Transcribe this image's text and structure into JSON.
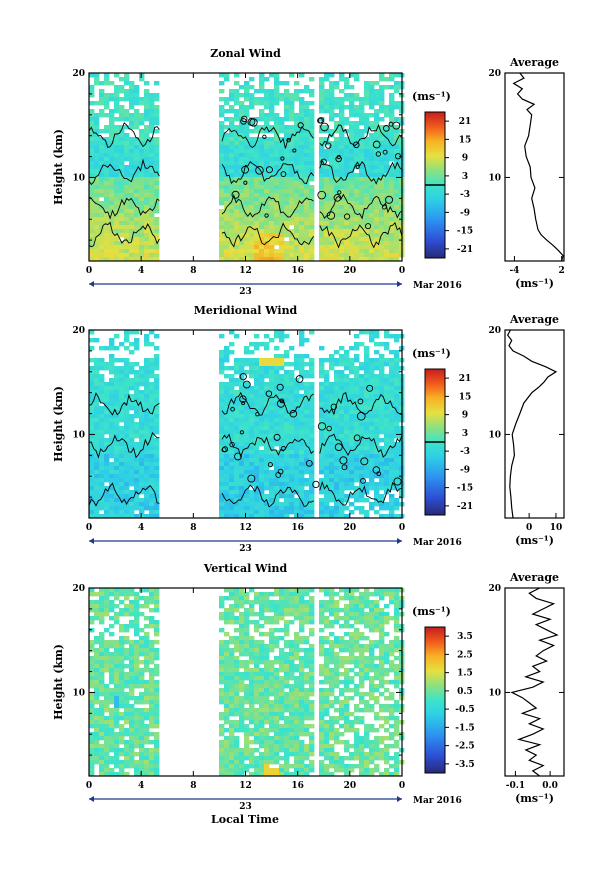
{
  "figure": {
    "xlabel": "Local Time",
    "date_label": "Mar 2016",
    "day_label": "23",
    "average_title": "Average",
    "unit_label": "(ms⁻¹)",
    "ylabel": "Height (km)"
  },
  "chart_data": [
    {
      "type": "heatmap",
      "title": "Zonal Wind",
      "ylabel": "Height (km)",
      "xlabel": "",
      "xlim": [
        0,
        24
      ],
      "ylim": [
        2,
        20
      ],
      "x_ticks": [
        "0",
        "4",
        "8",
        "12",
        "16",
        "20",
        "0"
      ],
      "y_ticks": [
        "20",
        "10"
      ],
      "data_gap_hours": [
        [
          5.5,
          10.0
        ],
        [
          17.4,
          17.6
        ]
      ],
      "colorbar": {
        "unit": "(ms⁻¹)",
        "range": [
          -24,
          24
        ],
        "ticks": [
          "21",
          "15",
          "9",
          "3",
          "-3",
          "-9",
          "-15",
          "-21"
        ],
        "contour_level": 0
      },
      "average_profile": {
        "title": "Average",
        "xlabel": "(ms⁻¹)",
        "x_ticks": [
          "-4",
          "2"
        ],
        "xlim": [
          -5.2,
          2.3
        ],
        "y_ticks": [
          "20",
          "10"
        ],
        "height_km": [
          2.0,
          2.5,
          3.0,
          3.5,
          4.0,
          4.5,
          5.0,
          6.0,
          7.0,
          8.0,
          9.0,
          10.0,
          11.0,
          12.0,
          13.0,
          14.0,
          15.0,
          16.0,
          16.5,
          17.0,
          17.5,
          18.0,
          18.5,
          19.0,
          19.5,
          20.0
        ],
        "wind_ms": [
          2.0,
          2.2,
          1.6,
          0.9,
          0.1,
          -0.6,
          -1.0,
          -1.3,
          -1.5,
          -1.8,
          -1.4,
          -1.9,
          -2.0,
          -2.5,
          -2.7,
          -2.2,
          -2.0,
          -1.8,
          -2.4,
          -1.5,
          -3.0,
          -3.6,
          -3.0,
          -4.1,
          -2.8,
          -3.3
        ]
      }
    },
    {
      "type": "heatmap",
      "title": "Meridional Wind",
      "ylabel": "Height (km)",
      "xlabel": "",
      "xlim": [
        0,
        24
      ],
      "ylim": [
        2,
        20
      ],
      "x_ticks": [
        "0",
        "4",
        "8",
        "12",
        "16",
        "20",
        "0"
      ],
      "y_ticks": [
        "20",
        "10"
      ],
      "data_gap_hours": [
        [
          5.5,
          10.0
        ],
        [
          17.4,
          17.6
        ]
      ],
      "colorbar": {
        "unit": "(ms⁻¹)",
        "range": [
          -24,
          24
        ],
        "ticks": [
          "21",
          "15",
          "9",
          "3",
          "-3",
          "-9",
          "-15",
          "-21"
        ],
        "contour_level": 0
      },
      "average_profile": {
        "title": "Average",
        "xlabel": "(ms⁻¹)",
        "x_ticks": [
          "0",
          "10"
        ],
        "xlim": [
          -9,
          13
        ],
        "y_ticks": [
          "20",
          "10"
        ],
        "height_km": [
          2.0,
          3.0,
          4.0,
          5.0,
          6.0,
          7.0,
          8.0,
          9.0,
          10.0,
          11.0,
          12.0,
          13.0,
          14.0,
          14.5,
          15.0,
          15.5,
          16.0,
          16.5,
          17.0,
          17.5,
          18.0,
          18.5,
          19.0,
          19.5,
          20.0
        ],
        "wind_ms": [
          -6.0,
          -6.5,
          -6.8,
          -7.2,
          -7.0,
          -6.5,
          -5.5,
          -5.8,
          -6.3,
          -5.0,
          -3.5,
          -2.0,
          1.0,
          3.5,
          5.5,
          7.0,
          10.0,
          6.0,
          1.0,
          -2.0,
          -6.0,
          -7.5,
          -6.5,
          -8.0,
          -7.0
        ]
      }
    },
    {
      "type": "heatmap",
      "title": "Vertical Wind",
      "ylabel": "Height (km)",
      "xlabel": "Local Time",
      "xlim": [
        0,
        24
      ],
      "ylim": [
        2,
        20
      ],
      "x_ticks": [
        "0",
        "4",
        "8",
        "12",
        "16",
        "20",
        "0"
      ],
      "y_ticks": [
        "20",
        "10"
      ],
      "data_gap_hours": [
        [
          5.5,
          10.0
        ],
        [
          17.4,
          17.6
        ]
      ],
      "colorbar": {
        "unit": "(ms⁻¹)",
        "range": [
          -4,
          4
        ],
        "ticks": [
          "3.5",
          "2.5",
          "1.5",
          "0.5",
          "-0.5",
          "-1.5",
          "-2.5",
          "-3.5"
        ]
      },
      "average_profile": {
        "title": "Average",
        "xlabel": "(ms⁻¹)",
        "x_ticks": [
          "-0.1",
          "0.0"
        ],
        "xlim": [
          -0.13,
          0.04
        ],
        "y_ticks": [
          "20",
          "10"
        ],
        "height_km": [
          2.0,
          2.5,
          3.0,
          3.5,
          4.0,
          4.5,
          5.0,
          5.5,
          6.0,
          6.5,
          7.0,
          7.5,
          8.0,
          8.5,
          9.0,
          9.5,
          10.0,
          10.5,
          11.0,
          11.5,
          12.0,
          12.5,
          13.0,
          13.5,
          14.0,
          14.5,
          15.0,
          15.5,
          16.0,
          16.5,
          17.0,
          17.5,
          18.0,
          18.5,
          19.0,
          19.5,
          20.0
        ],
        "wind_ms": [
          -0.03,
          -0.05,
          -0.02,
          -0.06,
          -0.04,
          -0.07,
          -0.03,
          -0.09,
          -0.05,
          -0.02,
          -0.06,
          -0.03,
          -0.08,
          -0.04,
          -0.06,
          -0.08,
          -0.11,
          -0.05,
          -0.02,
          -0.07,
          -0.03,
          -0.05,
          -0.01,
          -0.04,
          -0.02,
          0.01,
          -0.03,
          0.02,
          -0.01,
          -0.04,
          0.0,
          -0.05,
          -0.02,
          0.01,
          -0.04,
          -0.06,
          -0.03
        ]
      }
    }
  ]
}
